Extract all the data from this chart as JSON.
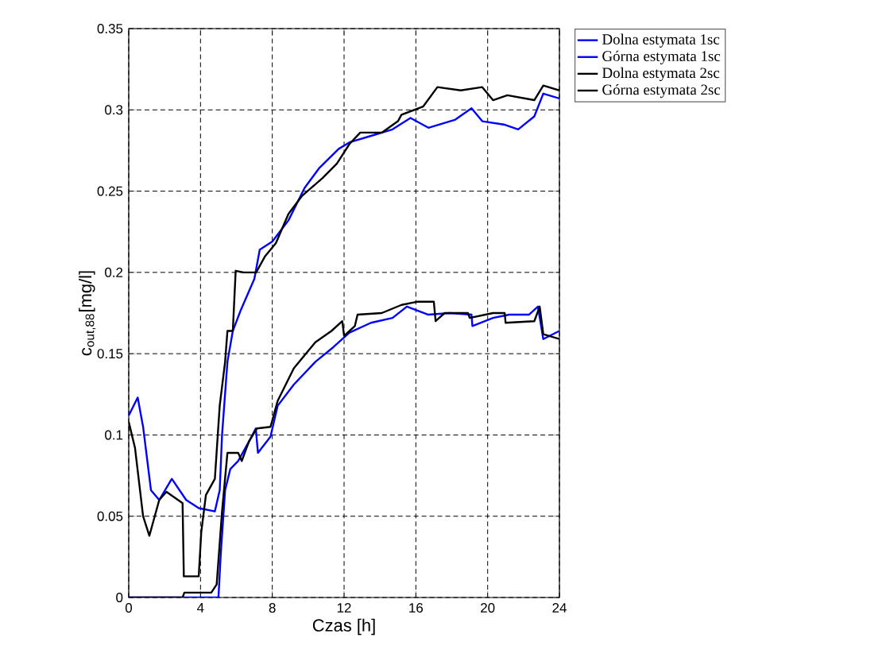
{
  "chart_data": {
    "type": "line",
    "xlabel": "Czas [h]",
    "ylabel": "c$_{out,88}$[mg/l]",
    "xlim": [
      0,
      24
    ],
    "ylim": [
      0,
      0.35
    ],
    "xticks": [
      0,
      4,
      8,
      12,
      16,
      20,
      24
    ],
    "yticks": [
      0,
      0.05,
      0.1,
      0.15,
      0.2,
      0.25,
      0.3,
      0.35
    ],
    "grid": true,
    "legend": "right",
    "series": [
      {
        "name": "Dolna estymata 1sc",
        "color": "#0000ff",
        "x": [
          0,
          4.8,
          5.0,
          5.13,
          5.37,
          5.66,
          6.1,
          6.7,
          7.08,
          7.2,
          7.9,
          8.3,
          9.2,
          10.4,
          11.4,
          12.3,
          13.5,
          14.7,
          15.5,
          16.7,
          17.9,
          19.1,
          19.15,
          20.3,
          21.2,
          22.3,
          22.8,
          23.1,
          24
        ],
        "values": [
          0,
          0,
          0,
          0.027,
          0.066,
          0.079,
          0.084,
          0.096,
          0.104,
          0.089,
          0.099,
          0.118,
          0.131,
          0.145,
          0.154,
          0.163,
          0.169,
          0.172,
          0.179,
          0.174,
          0.175,
          0.174,
          0.167,
          0.172,
          0.174,
          0.174,
          0.179,
          0.159,
          0.164
        ]
      },
      {
        "name": "Górna estymata 1sc",
        "color": "#0000ff",
        "x": [
          0,
          0.5,
          0.8,
          1.24,
          1.7,
          2.4,
          3.2,
          3.9,
          4.8,
          5.07,
          5.2,
          5.5,
          5.8,
          6.25,
          7.0,
          7.3,
          8.0,
          8.9,
          9.8,
          10.6,
          11.7,
          12.3,
          13.5,
          14.7,
          15.7,
          16.7,
          18.2,
          19.1,
          19.7,
          20.9,
          21.7,
          22.6,
          23.1,
          24
        ],
        "values": [
          0.112,
          0.123,
          0.105,
          0.066,
          0.06,
          0.073,
          0.06,
          0.055,
          0.053,
          0.066,
          0.1,
          0.145,
          0.164,
          0.177,
          0.196,
          0.214,
          0.219,
          0.232,
          0.252,
          0.264,
          0.276,
          0.28,
          0.284,
          0.288,
          0.295,
          0.289,
          0.294,
          0.301,
          0.293,
          0.291,
          0.288,
          0.296,
          0.31,
          0.307
        ]
      },
      {
        "name": "Dolna estymata 2sc",
        "color": "#000000",
        "x": [
          0,
          3.0,
          3.1,
          4.6,
          4.9,
          5.2,
          5.5,
          6.1,
          6.3,
          6.7,
          7.14,
          7.9,
          8.3,
          9.2,
          10.4,
          11.3,
          11.9,
          12.0,
          12.6,
          12.75,
          14.1,
          15.2,
          16.1,
          17.0,
          17.1,
          17.6,
          18.9,
          19.0,
          20.3,
          20.95,
          21.0,
          22.6,
          22.9,
          23.1,
          24
        ],
        "values": [
          0,
          0,
          0.003,
          0.003,
          0.008,
          0.053,
          0.089,
          0.089,
          0.084,
          0.096,
          0.104,
          0.105,
          0.121,
          0.141,
          0.157,
          0.164,
          0.17,
          0.161,
          0.167,
          0.174,
          0.175,
          0.18,
          0.182,
          0.182,
          0.17,
          0.175,
          0.175,
          0.172,
          0.175,
          0.175,
          0.169,
          0.17,
          0.179,
          0.162,
          0.159
        ]
      },
      {
        "name": "Górna estymata 2sc",
        "color": "#000000",
        "x": [
          0,
          0.35,
          0.8,
          1.15,
          1.7,
          2.1,
          3.0,
          3.07,
          3.9,
          4.04,
          4.3,
          4.8,
          5.07,
          5.37,
          5.5,
          5.8,
          5.96,
          6.4,
          7.1,
          7.6,
          8.2,
          8.9,
          9.65,
          10.8,
          11.6,
          12.3,
          12.9,
          14.1,
          15.0,
          15.2,
          16.4,
          17.2,
          18.5,
          19.7,
          20.3,
          21.1,
          22.6,
          23.1,
          24
        ],
        "values": [
          0.108,
          0.092,
          0.05,
          0.038,
          0.06,
          0.065,
          0.058,
          0.013,
          0.013,
          0.04,
          0.063,
          0.073,
          0.118,
          0.145,
          0.164,
          0.164,
          0.201,
          0.2,
          0.2,
          0.21,
          0.218,
          0.236,
          0.247,
          0.258,
          0.267,
          0.279,
          0.286,
          0.286,
          0.293,
          0.297,
          0.302,
          0.314,
          0.312,
          0.314,
          0.306,
          0.309,
          0.306,
          0.315,
          0.312
        ]
      }
    ]
  }
}
